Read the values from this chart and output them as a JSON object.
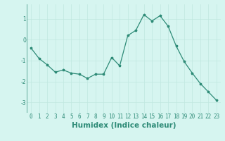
{
  "x": [
    0,
    1,
    2,
    3,
    4,
    5,
    6,
    7,
    8,
    9,
    10,
    11,
    12,
    13,
    14,
    15,
    16,
    17,
    18,
    19,
    20,
    21,
    22,
    23
  ],
  "y": [
    -0.4,
    -0.9,
    -1.2,
    -1.55,
    -1.45,
    -1.6,
    -1.65,
    -1.85,
    -1.65,
    -1.65,
    -0.85,
    -1.25,
    0.2,
    0.45,
    1.2,
    0.9,
    1.15,
    0.65,
    -0.3,
    -1.05,
    -1.6,
    -2.1,
    -2.5,
    -2.9
  ],
  "xlabel": "Humidex (Indice chaleur)",
  "xlim": [
    -0.5,
    23.5
  ],
  "ylim": [
    -3.5,
    1.7
  ],
  "yticks": [
    -3,
    -2,
    -1,
    0,
    1
  ],
  "xticks": [
    0,
    1,
    2,
    3,
    4,
    5,
    6,
    7,
    8,
    9,
    10,
    11,
    12,
    13,
    14,
    15,
    16,
    17,
    18,
    19,
    20,
    21,
    22,
    23
  ],
  "line_color": "#2e8b77",
  "marker": "*",
  "marker_size": 2.5,
  "bg_color": "#d6f5f0",
  "grid_color": "#c0e8e0",
  "tick_label_fontsize": 5.5,
  "xlabel_fontsize": 7.5,
  "linewidth": 0.9
}
